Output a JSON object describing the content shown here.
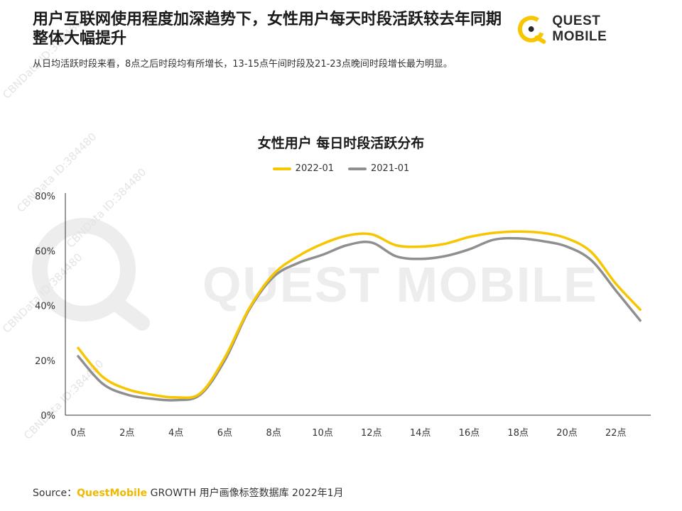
{
  "header": {
    "title": "用户互联网使用程度加深趋势下，女性用户每天时段活跃较去年同期整体大幅提升",
    "subtitle": "从日均活跃时段来看，8点之后时段均有所增长，13-15点午间时段及21-23点晚间时段增长最为明显。",
    "logo_text": "QUEST MOBILE"
  },
  "watermark": {
    "text": "QUEST MOBILE",
    "repeated_text": "CBNData ID:384480"
  },
  "footer": {
    "source_label": "Source：",
    "source_brand": "QuestMobile",
    "source_rest": " GROWTH 用户画像标签数据库 2022年1月"
  },
  "colors": {
    "series_2022": "#f7c600",
    "series_2021": "#8f8f8f",
    "axis": "#333333",
    "watermark": "#ededed"
  },
  "chart_data": {
    "type": "line",
    "title": "女性用户 每日时段活跃分布",
    "xlabel": "",
    "ylabel": "",
    "ylim": [
      0,
      80
    ],
    "y_ticks": [
      "0%",
      "20%",
      "40%",
      "60%",
      "80%"
    ],
    "x_ticks": [
      "0点",
      "2点",
      "4点",
      "6点",
      "8点",
      "10点",
      "12点",
      "14点",
      "16点",
      "18点",
      "20点",
      "22点"
    ],
    "x": [
      0,
      1,
      2,
      3,
      4,
      5,
      6,
      7,
      8,
      9,
      10,
      11,
      12,
      13,
      14,
      15,
      16,
      17,
      18,
      19,
      20,
      21,
      22,
      23
    ],
    "legend_position": "top-center",
    "grid": false,
    "series": [
      {
        "name": "2022-01",
        "values": [
          24.5,
          14,
          9.5,
          7.5,
          6.5,
          8,
          21,
          39,
          51.5,
          58,
          62.5,
          65.5,
          66,
          62,
          61.5,
          62.5,
          65,
          66.5,
          67,
          66.5,
          64.5,
          59.5,
          48,
          38.5
        ]
      },
      {
        "name": "2021-01",
        "values": [
          21.5,
          11.5,
          7.5,
          6,
          5.5,
          7.5,
          20,
          38.5,
          50.5,
          55.5,
          58.5,
          62,
          63,
          58,
          57,
          58,
          60.5,
          64,
          64.5,
          63.5,
          61.5,
          56.5,
          45.5,
          34.5
        ]
      }
    ]
  }
}
